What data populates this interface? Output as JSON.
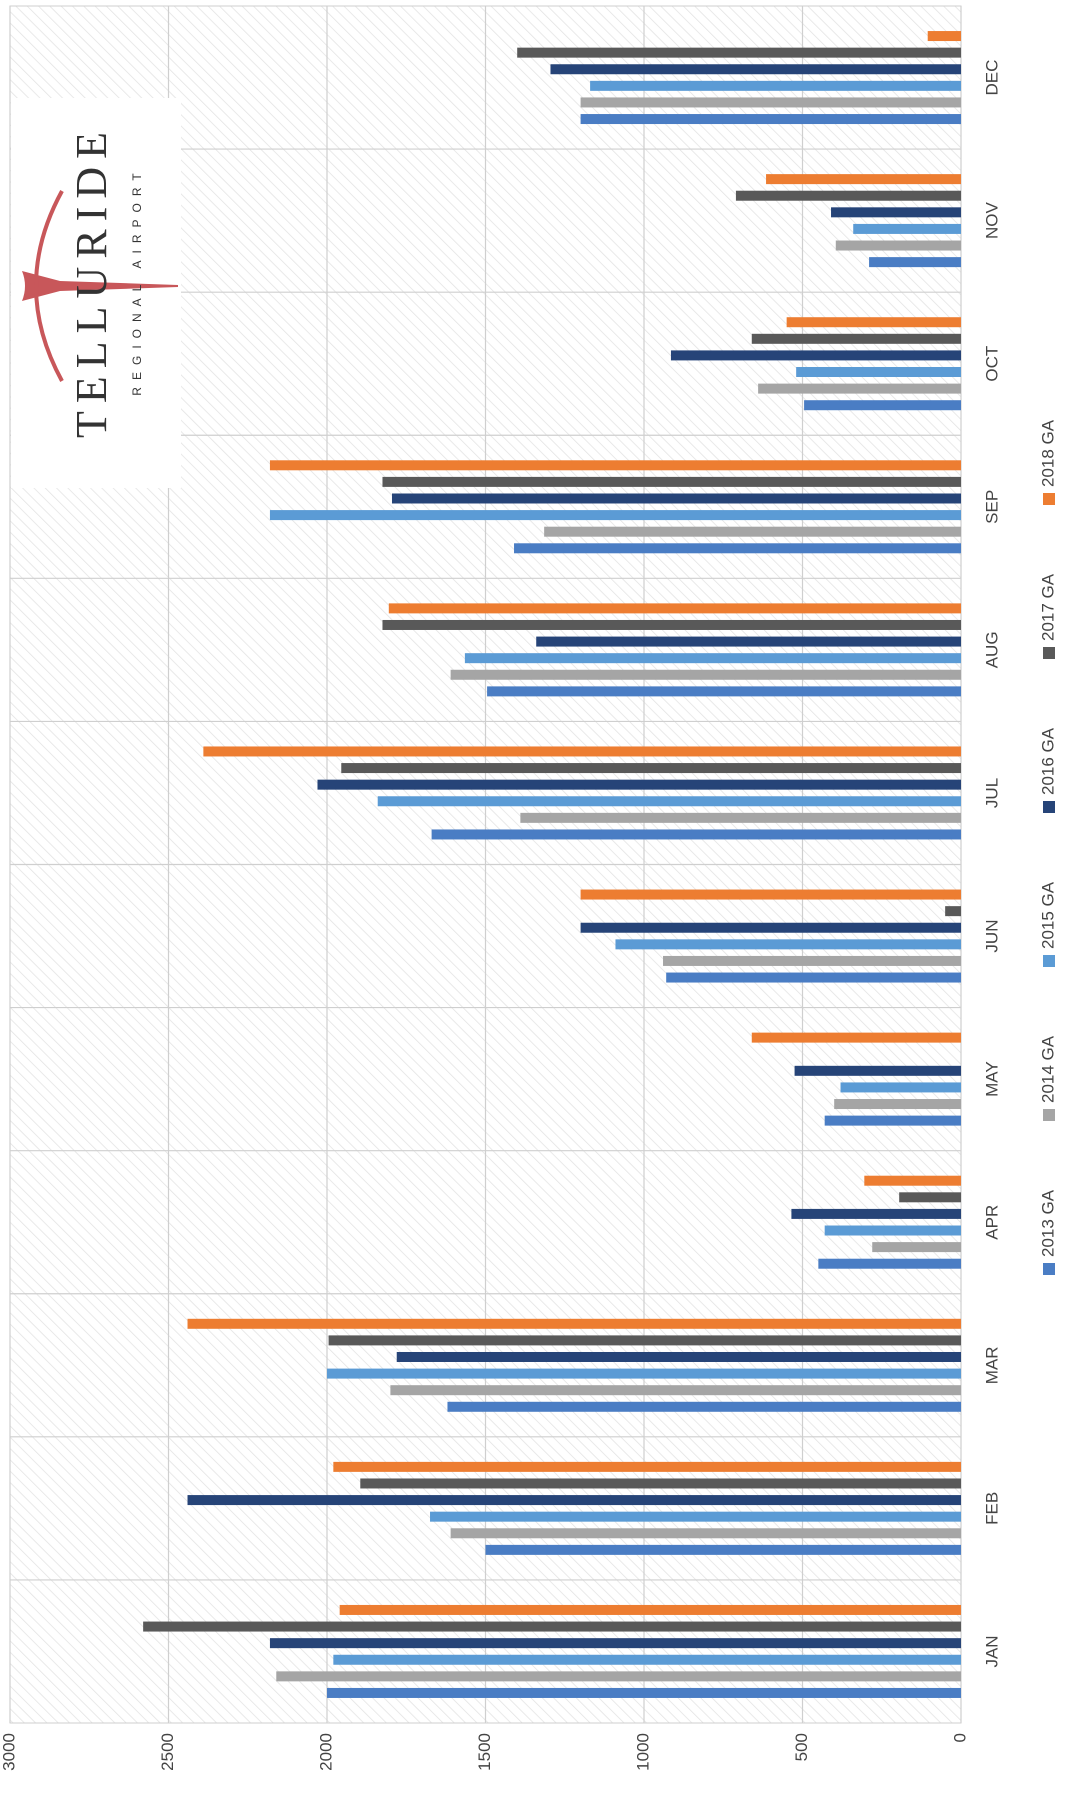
{
  "chart_data": {
    "type": "bar",
    "categories": [
      "JAN",
      "FEB",
      "MAR",
      "APR",
      "MAY",
      "JUN",
      "JUL",
      "AUG",
      "SEP",
      "OCT",
      "NOV",
      "DEC"
    ],
    "series": [
      {
        "name": "2013 GA",
        "color": "#4a7dc4",
        "values": [
          2000,
          1500,
          1620,
          450,
          430,
          930,
          1670,
          1495,
          1410,
          495,
          290,
          1200
        ]
      },
      {
        "name": "2014 GA",
        "color": "#a5a5a5",
        "values": [
          2160,
          1610,
          1800,
          280,
          400,
          940,
          1390,
          1610,
          1315,
          640,
          395,
          1200
        ]
      },
      {
        "name": "2015 GA",
        "color": "#5b9bd5",
        "values": [
          1980,
          1675,
          2000,
          430,
          380,
          1090,
          1840,
          1565,
          2180,
          520,
          340,
          1170
        ]
      },
      {
        "name": "2016 GA",
        "color": "#264478",
        "values": [
          2180,
          2440,
          1780,
          535,
          525,
          1200,
          2030,
          1340,
          1795,
          915,
          410,
          1295
        ]
      },
      {
        "name": "2017 GA",
        "color": "#595959",
        "values": [
          2580,
          1895,
          1995,
          195,
          null,
          50,
          1955,
          1825,
          1825,
          660,
          710,
          1400
        ]
      },
      {
        "name": "2018 GA",
        "color": "#ed7d31",
        "values": [
          1960,
          1980,
          2440,
          305,
          660,
          1200,
          2390,
          1805,
          2180,
          550,
          615,
          105
        ]
      }
    ],
    "ylim": [
      0,
      3000
    ],
    "yticks": [
      0,
      500,
      1000,
      1500,
      2000,
      2500,
      3000
    ],
    "grid": true,
    "legend": "bottom"
  },
  "logo": {
    "title": "TELLURIDE",
    "subtitle": "REGIONAL AIRPORT"
  }
}
